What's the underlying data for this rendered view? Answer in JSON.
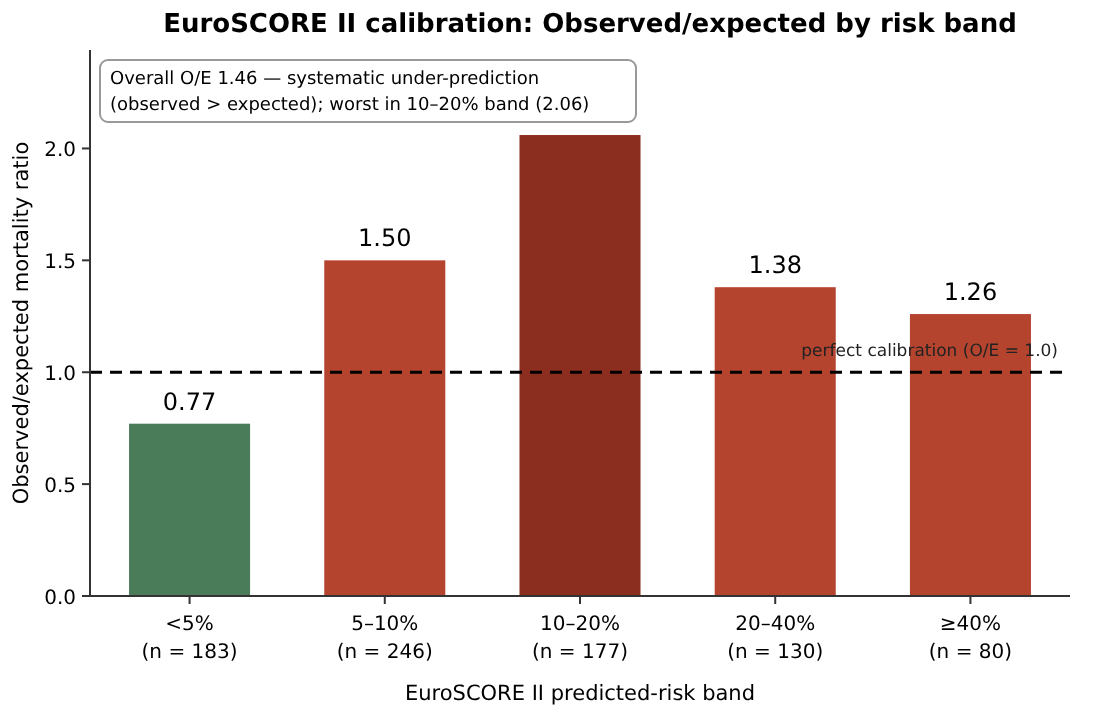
{
  "chart_data": {
    "type": "bar",
    "title": "EuroSCORE II calibration: Observed/expected by risk band",
    "xlabel": "EuroSCORE II predicted-risk band",
    "ylabel": "Observed/expected mortality ratio",
    "categories": [
      "<5%\n(n = 183)",
      "5–10%\n(n = 246)",
      "10–20%\n(n = 177)",
      "20–40%\n(n = 130)",
      "≥40%\n(n = 80)"
    ],
    "values": [
      0.77,
      1.5,
      2.06,
      1.38,
      1.26
    ],
    "colors": [
      "#4a7c59",
      "#b5442f",
      "#8b2e1f",
      "#b5442f",
      "#b5442f"
    ],
    "ylim": [
      0,
      2.44
    ],
    "yticks": [
      {
        "value": 0,
        "label": "0.0"
      },
      {
        "value": 0.5,
        "label": "0.5"
      },
      {
        "value": 1,
        "label": "1.0"
      },
      {
        "value": 1.5,
        "label": "1.5"
      },
      {
        "value": 2,
        "label": "2.0"
      }
    ],
    "value_labels": [
      "0.77",
      "1.50",
      null,
      "1.38",
      "1.26"
    ],
    "ref_lines": [
      {
        "axis": "y",
        "value": 1.0,
        "label": "perfect calibration (O/E = 1.0)",
        "color": "#000000",
        "line_style": "dashed"
      }
    ],
    "annotations": [
      "Overall O/E 1.46 — systematic under-prediction\n(observed > expected); worst in 10–20% band (2.06)"
    ],
    "grid": false
  }
}
